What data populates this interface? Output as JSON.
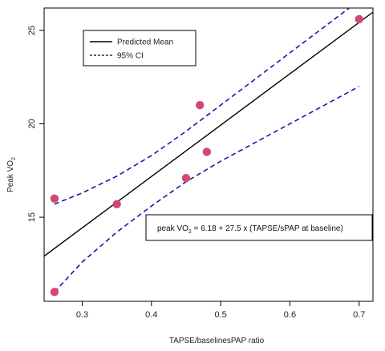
{
  "chart_data": {
    "type": "scatter",
    "xlabel": "TAPSE/baselinesPAP ratio",
    "ylabel": {
      "main": "Peak VO",
      "sub": "2"
    },
    "xlim": [
      0.245,
      0.72
    ],
    "ylim": [
      10.5,
      26.2
    ],
    "x_ticks": [
      0.3,
      0.4,
      0.5,
      0.6,
      0.7
    ],
    "y_ticks": [
      15,
      20,
      25
    ],
    "grid": false,
    "legend": {
      "placement": "top-left",
      "entries": [
        {
          "label": "Predicted Mean",
          "style": "solid",
          "color": "#000000"
        },
        {
          "label": "95% CI",
          "style": "dashed",
          "color": "#1a1aaa"
        }
      ]
    },
    "points": [
      {
        "x": 0.26,
        "y": 16.0
      },
      {
        "x": 0.26,
        "y": 11.0
      },
      {
        "x": 0.35,
        "y": 15.7
      },
      {
        "x": 0.45,
        "y": 17.1
      },
      {
        "x": 0.47,
        "y": 21.0
      },
      {
        "x": 0.48,
        "y": 18.5
      },
      {
        "x": 0.7,
        "y": 25.6
      }
    ],
    "fit": {
      "intercept": 6.18,
      "slope": 27.5
    },
    "ci_upper": [
      {
        "x": 0.26,
        "y": 15.7
      },
      {
        "x": 0.3,
        "y": 16.3
      },
      {
        "x": 0.35,
        "y": 17.2
      },
      {
        "x": 0.4,
        "y": 18.3
      },
      {
        "x": 0.45,
        "y": 19.6
      },
      {
        "x": 0.5,
        "y": 21.0
      },
      {
        "x": 0.55,
        "y": 22.4
      },
      {
        "x": 0.6,
        "y": 23.8
      },
      {
        "x": 0.65,
        "y": 25.2
      },
      {
        "x": 0.7,
        "y": 26.6
      }
    ],
    "ci_lower": [
      {
        "x": 0.26,
        "y": 11.0
      },
      {
        "x": 0.3,
        "y": 12.6
      },
      {
        "x": 0.35,
        "y": 14.2
      },
      {
        "x": 0.4,
        "y": 15.6
      },
      {
        "x": 0.45,
        "y": 16.9
      },
      {
        "x": 0.5,
        "y": 18.0
      },
      {
        "x": 0.55,
        "y": 19.0
      },
      {
        "x": 0.6,
        "y": 20.0
      },
      {
        "x": 0.65,
        "y": 21.0
      },
      {
        "x": 0.7,
        "y": 22.0
      }
    ],
    "annotation": {
      "prefix": "peak VO",
      "sub": "2",
      "suffix": " = 6.18 + 27.5 x (TAPSE/sPAP at baseline)"
    },
    "colors": {
      "points": "#d2496b",
      "fit": "#000000",
      "ci": "#1a1aaa"
    }
  }
}
